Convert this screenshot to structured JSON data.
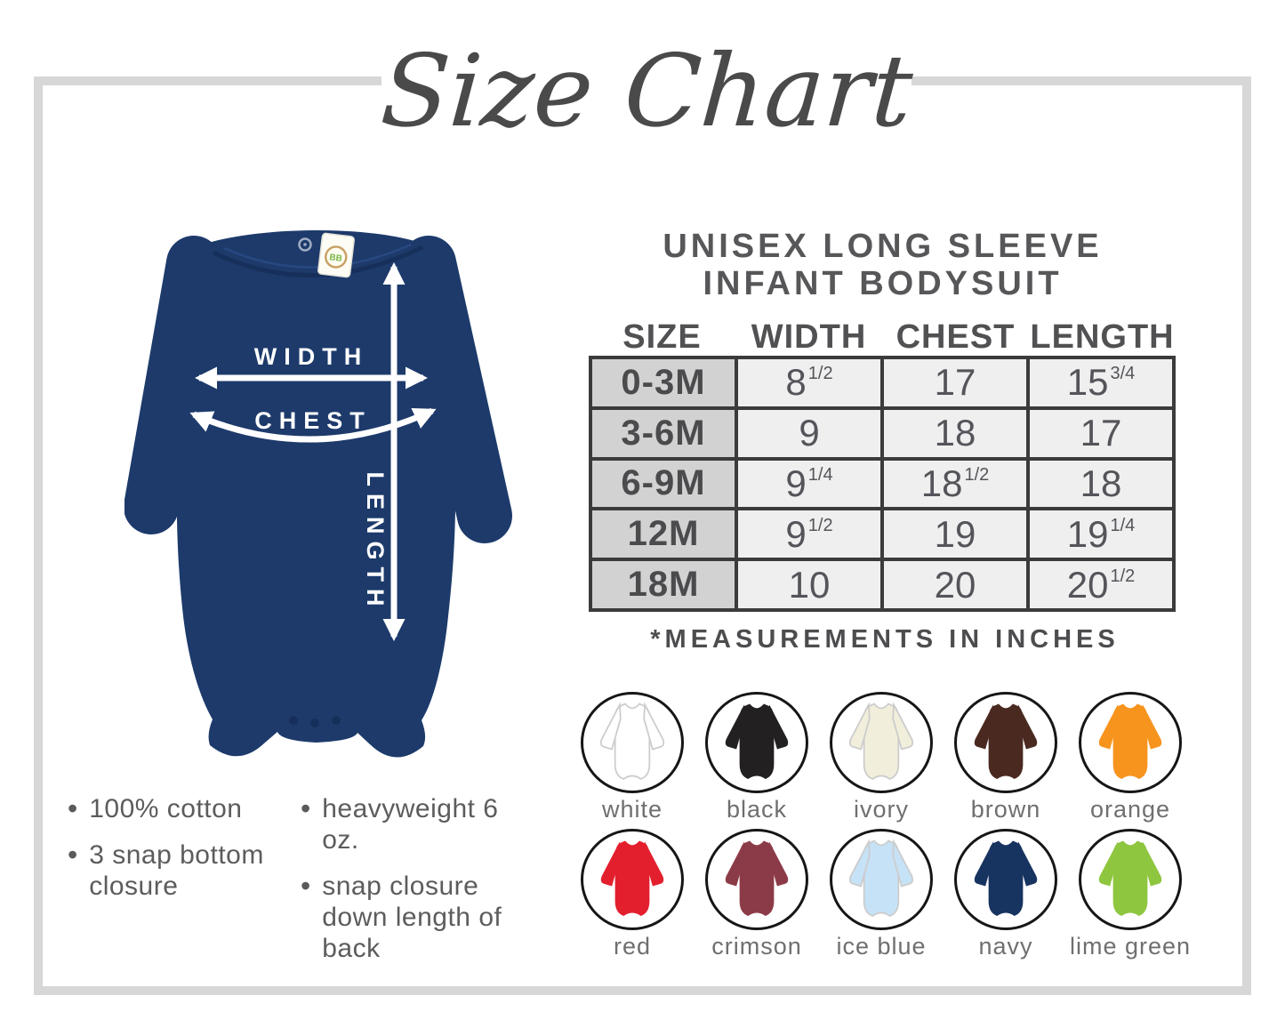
{
  "title": "Size Chart",
  "product": {
    "line1": "UNISEX LONG SLEEVE",
    "line2": "INFANT BODYSUIT"
  },
  "size_table": {
    "columns": [
      "SIZE",
      "WIDTH",
      "CHEST",
      "LENGTH"
    ],
    "rows": [
      {
        "size": "0-3M",
        "width": "8 1/2",
        "chest": "17",
        "length": "15 3/4"
      },
      {
        "size": "3-6M",
        "width": "9",
        "chest": "18",
        "length": "17"
      },
      {
        "size": "6-9M",
        "width": "9 1/4",
        "chest": "18 1/2",
        "length": "18"
      },
      {
        "size": "12M",
        "width": "9 1/2",
        "chest": "19",
        "length": "19 1/4"
      },
      {
        "size": "18M",
        "width": "10",
        "chest": "20",
        "length": "20 1/2"
      }
    ],
    "footnote": "*MEASUREMENTS IN INCHES"
  },
  "diagram": {
    "width_label": "WIDTH",
    "chest_label": "CHEST",
    "length_label": "LENGTH",
    "suit_color": "#1d3a6b"
  },
  "features": {
    "column1": [
      "100% cotton",
      "3 snap bottom closure"
    ],
    "column2": [
      "heavyweight 6 oz.",
      "snap closure down length of back"
    ]
  },
  "swatches": [
    {
      "name": "white",
      "hex": "#ffffff",
      "light": true
    },
    {
      "name": "black",
      "hex": "#232021"
    },
    {
      "name": "ivory",
      "hex": "#f1eedb",
      "light": true
    },
    {
      "name": "brown",
      "hex": "#4a2a20"
    },
    {
      "name": "orange",
      "hex": "#f7941e"
    },
    {
      "name": "red",
      "hex": "#e31f2e"
    },
    {
      "name": "crimson",
      "hex": "#8b3b47"
    },
    {
      "name": "ice blue",
      "hex": "#c6e2f6",
      "light": true
    },
    {
      "name": "navy",
      "hex": "#17335f"
    },
    {
      "name": "lime green",
      "hex": "#8ec63f"
    }
  ],
  "frame_color": "#d7d7d7",
  "text_colors": {
    "title": "#4a4a4a",
    "heading": "#57575a",
    "body": "#5c5c5e"
  }
}
